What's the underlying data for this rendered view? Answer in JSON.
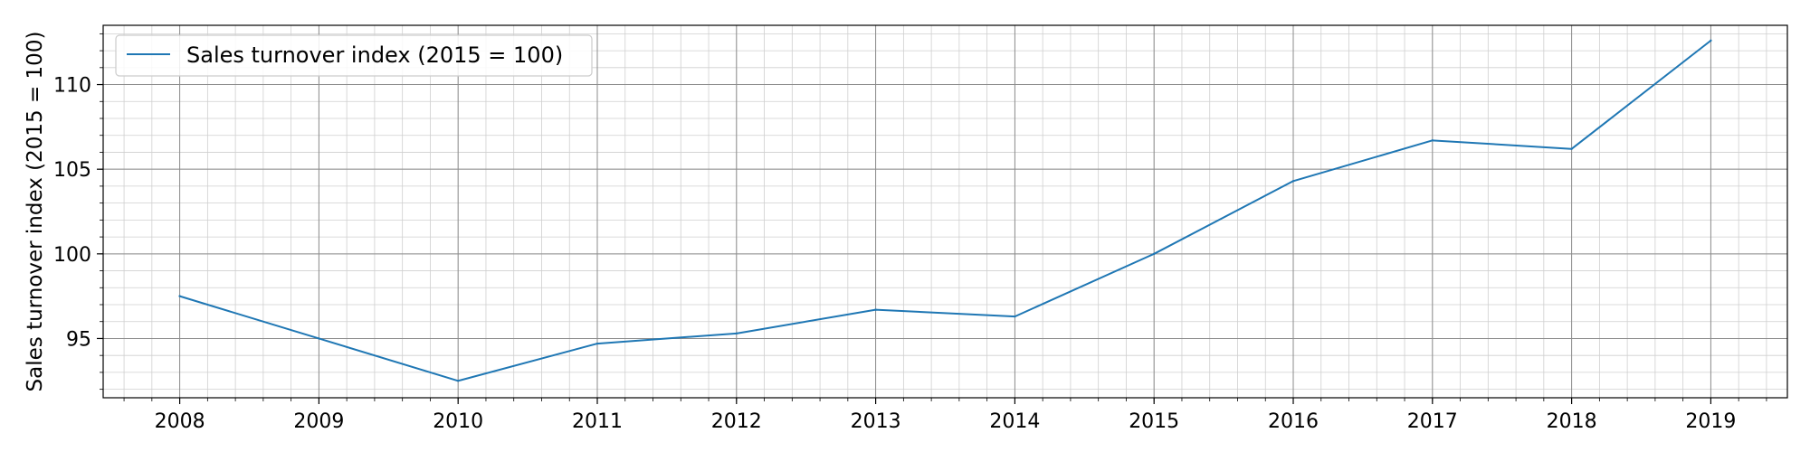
{
  "chart_data": {
    "type": "line",
    "xlabel": "",
    "ylabel": "Sales turnover index (2015 = 100)",
    "x": [
      2008,
      2009,
      2010,
      2011,
      2012,
      2013,
      2014,
      2015,
      2016,
      2017,
      2018,
      2019
    ],
    "xlim": [
      2007.45,
      2019.55
    ],
    "ylim": [
      91.5,
      113.5
    ],
    "x_ticks": [
      "2008",
      "2009",
      "2010",
      "2011",
      "2012",
      "2013",
      "2014",
      "2015",
      "2016",
      "2017",
      "2018",
      "2019"
    ],
    "y_ticks": [
      95,
      100,
      105,
      110
    ],
    "y_tick_labels": [
      "95",
      "100",
      "105",
      "110"
    ],
    "grid": "major and minor",
    "legend_position": "top-left",
    "series": [
      {
        "name": "Sales turnover index (2015 = 100)",
        "color": "#1f77b4",
        "values": [
          97.5,
          95.0,
          92.5,
          94.7,
          95.3,
          96.7,
          96.3,
          100.0,
          104.3,
          106.7,
          106.2,
          112.6
        ]
      }
    ]
  }
}
